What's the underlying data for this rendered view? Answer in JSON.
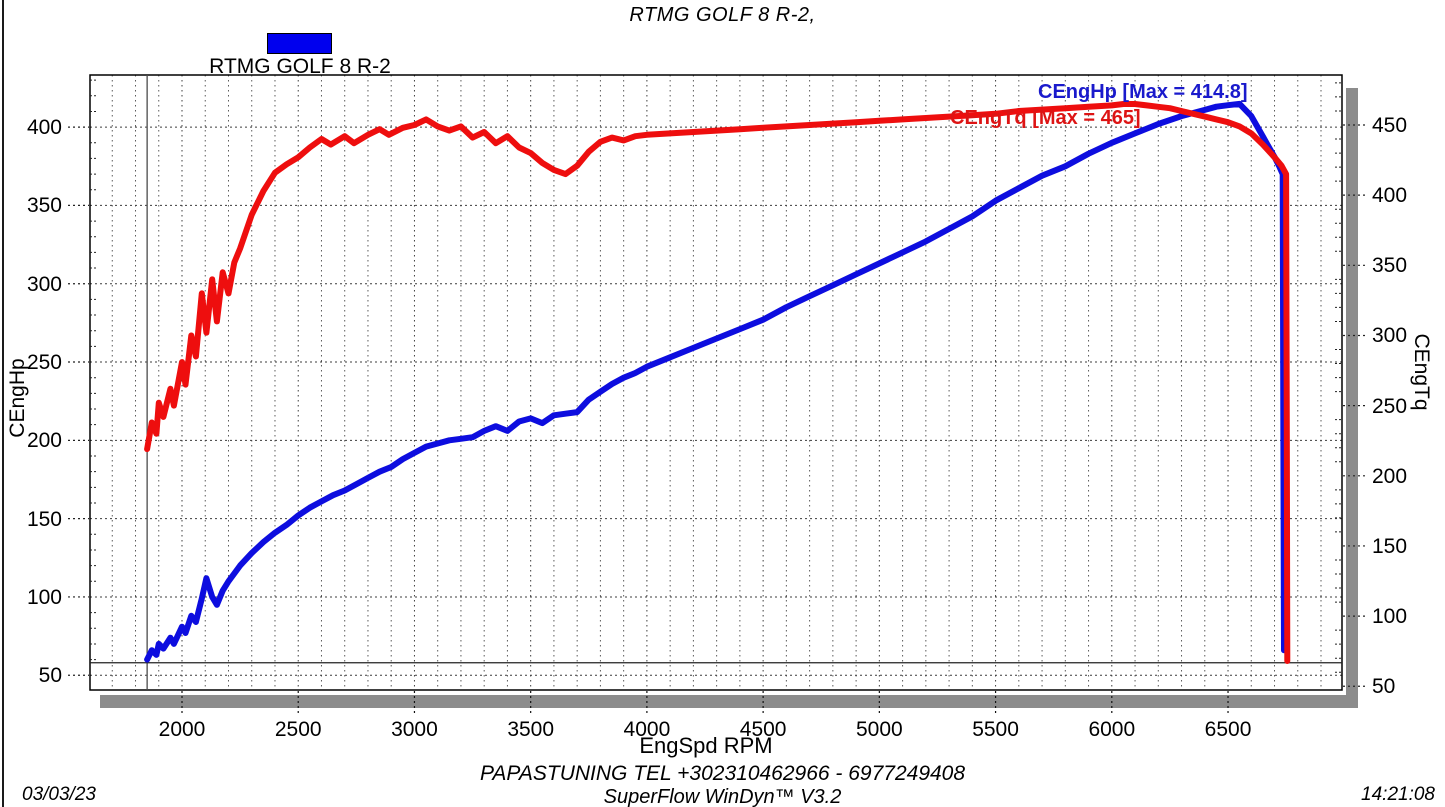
{
  "header": {
    "title": "RTMG GOLF 8 R-2,"
  },
  "legend": {
    "label": "RTMG GOLF 8 R-2",
    "swatch_color": "#0000ee"
  },
  "footer": {
    "line1": "PAPASTUNING TEL +302310462966 - 6977249408",
    "line2": "SuperFlow WinDyn™ V3.2",
    "date": "03/03/23",
    "time": "14:21:08"
  },
  "chart_data": {
    "type": "line",
    "title": "RTMG GOLF 8 R-2,",
    "xlabel": "EngSpd  RPM",
    "grid": "dotted, minor every 100 RPM",
    "legend_position": "top-left above plot",
    "xlim": [
      1600,
      6990
    ],
    "x_ticks": [
      2000,
      2500,
      3000,
      3500,
      4000,
      4500,
      5000,
      5500,
      6000,
      6500
    ],
    "x_minor_step": 100,
    "left_axis": {
      "label": "CEngHp",
      "ticks": [
        400,
        350,
        300,
        250,
        200,
        150,
        100,
        50
      ],
      "lim": [
        40,
        433
      ]
    },
    "right_axis": {
      "label": "CEngTq",
      "ticks": [
        450,
        400,
        350,
        300,
        250,
        200,
        150,
        100,
        50
      ],
      "lim": [
        47,
        486
      ]
    },
    "markers": {
      "run_start_rpm": 1850,
      "baseline_hp": 58
    },
    "series": [
      {
        "name": "CEngHp",
        "axis": "left",
        "color": "#0d0ddf",
        "annotation": "CEngHp [Max = 414.8]",
        "annotation_color": "#1a1acc",
        "max": 414.8,
        "points": [
          [
            1850,
            60
          ],
          [
            1870,
            66
          ],
          [
            1890,
            63
          ],
          [
            1900,
            70
          ],
          [
            1920,
            67
          ],
          [
            1950,
            74
          ],
          [
            1965,
            70
          ],
          [
            2000,
            81
          ],
          [
            2015,
            77
          ],
          [
            2040,
            88
          ],
          [
            2060,
            84
          ],
          [
            2085,
            99
          ],
          [
            2105,
            112
          ],
          [
            2130,
            100
          ],
          [
            2150,
            95
          ],
          [
            2175,
            104
          ],
          [
            2200,
            110
          ],
          [
            2225,
            115
          ],
          [
            2250,
            120
          ],
          [
            2300,
            128
          ],
          [
            2350,
            135
          ],
          [
            2400,
            141
          ],
          [
            2450,
            146
          ],
          [
            2500,
            152
          ],
          [
            2550,
            157
          ],
          [
            2600,
            161
          ],
          [
            2650,
            165
          ],
          [
            2700,
            168
          ],
          [
            2750,
            172
          ],
          [
            2800,
            176
          ],
          [
            2850,
            180
          ],
          [
            2900,
            183
          ],
          [
            2950,
            188
          ],
          [
            3000,
            192
          ],
          [
            3050,
            196
          ],
          [
            3100,
            198
          ],
          [
            3150,
            200
          ],
          [
            3200,
            201
          ],
          [
            3250,
            202
          ],
          [
            3300,
            206
          ],
          [
            3350,
            209
          ],
          [
            3400,
            206
          ],
          [
            3450,
            212
          ],
          [
            3500,
            214
          ],
          [
            3550,
            211
          ],
          [
            3600,
            216
          ],
          [
            3650,
            217
          ],
          [
            3700,
            218
          ],
          [
            3750,
            226
          ],
          [
            3800,
            231
          ],
          [
            3850,
            236
          ],
          [
            3900,
            240
          ],
          [
            3950,
            243
          ],
          [
            4000,
            247
          ],
          [
            4100,
            253
          ],
          [
            4200,
            259
          ],
          [
            4300,
            265
          ],
          [
            4400,
            271
          ],
          [
            4500,
            277
          ],
          [
            4600,
            285
          ],
          [
            4700,
            292
          ],
          [
            4800,
            299
          ],
          [
            4900,
            306
          ],
          [
            5000,
            313
          ],
          [
            5100,
            320
          ],
          [
            5200,
            327
          ],
          [
            5300,
            335
          ],
          [
            5400,
            343
          ],
          [
            5500,
            353
          ],
          [
            5600,
            361
          ],
          [
            5700,
            369
          ],
          [
            5800,
            375
          ],
          [
            5900,
            383
          ],
          [
            6000,
            390
          ],
          [
            6100,
            396
          ],
          [
            6200,
            402
          ],
          [
            6300,
            407
          ],
          [
            6400,
            411
          ],
          [
            6450,
            413
          ],
          [
            6500,
            414
          ],
          [
            6550,
            414.8
          ],
          [
            6600,
            407
          ],
          [
            6650,
            394
          ],
          [
            6680,
            386
          ],
          [
            6700,
            381
          ],
          [
            6720,
            375
          ],
          [
            6735,
            370
          ],
          [
            6738,
            220
          ],
          [
            6741,
            66
          ]
        ]
      },
      {
        "name": "CEngTq",
        "axis": "right",
        "color": "#ee0e0e",
        "annotation": "CEngTq [Max = 465]",
        "annotation_color": "#dd1414",
        "max": 465,
        "points": [
          [
            1850,
            219
          ],
          [
            1870,
            238
          ],
          [
            1890,
            230
          ],
          [
            1900,
            252
          ],
          [
            1920,
            242
          ],
          [
            1950,
            262
          ],
          [
            1965,
            250
          ],
          [
            2000,
            281
          ],
          [
            2015,
            265
          ],
          [
            2040,
            300
          ],
          [
            2060,
            285
          ],
          [
            2085,
            330
          ],
          [
            2105,
            302
          ],
          [
            2130,
            340
          ],
          [
            2150,
            310
          ],
          [
            2175,
            345
          ],
          [
            2200,
            330
          ],
          [
            2225,
            352
          ],
          [
            2250,
            362
          ],
          [
            2300,
            386
          ],
          [
            2350,
            403
          ],
          [
            2400,
            416
          ],
          [
            2450,
            422
          ],
          [
            2500,
            427
          ],
          [
            2550,
            434
          ],
          [
            2600,
            440
          ],
          [
            2640,
            436
          ],
          [
            2700,
            442
          ],
          [
            2740,
            437
          ],
          [
            2800,
            443
          ],
          [
            2850,
            447
          ],
          [
            2890,
            443
          ],
          [
            2950,
            448
          ],
          [
            3000,
            450
          ],
          [
            3050,
            454
          ],
          [
            3100,
            449
          ],
          [
            3150,
            446
          ],
          [
            3200,
            449
          ],
          [
            3250,
            441
          ],
          [
            3300,
            445
          ],
          [
            3350,
            437
          ],
          [
            3400,
            442
          ],
          [
            3450,
            434
          ],
          [
            3500,
            430
          ],
          [
            3550,
            423
          ],
          [
            3600,
            418
          ],
          [
            3650,
            415
          ],
          [
            3700,
            421
          ],
          [
            3750,
            431
          ],
          [
            3800,
            438
          ],
          [
            3850,
            441
          ],
          [
            3900,
            439
          ],
          [
            3950,
            442
          ],
          [
            4000,
            443
          ],
          [
            4100,
            444
          ],
          [
            4200,
            445
          ],
          [
            4300,
            446
          ],
          [
            4400,
            447
          ],
          [
            4500,
            448
          ],
          [
            4600,
            449
          ],
          [
            4700,
            450
          ],
          [
            4800,
            451
          ],
          [
            4900,
            452
          ],
          [
            5000,
            453
          ],
          [
            5100,
            454
          ],
          [
            5200,
            455
          ],
          [
            5300,
            456
          ],
          [
            5400,
            457
          ],
          [
            5500,
            458
          ],
          [
            5600,
            460
          ],
          [
            5700,
            461
          ],
          [
            5800,
            462
          ],
          [
            5900,
            463
          ],
          [
            6000,
            464
          ],
          [
            6050,
            465
          ],
          [
            6100,
            465
          ],
          [
            6150,
            464
          ],
          [
            6200,
            463
          ],
          [
            6250,
            462
          ],
          [
            6300,
            460
          ],
          [
            6350,
            458
          ],
          [
            6400,
            456
          ],
          [
            6450,
            454
          ],
          [
            6500,
            452
          ],
          [
            6550,
            449
          ],
          [
            6600,
            444
          ],
          [
            6650,
            436
          ],
          [
            6700,
            427
          ],
          [
            6730,
            421
          ],
          [
            6750,
            415
          ],
          [
            6753,
            230
          ],
          [
            6755,
            68
          ]
        ]
      }
    ]
  }
}
